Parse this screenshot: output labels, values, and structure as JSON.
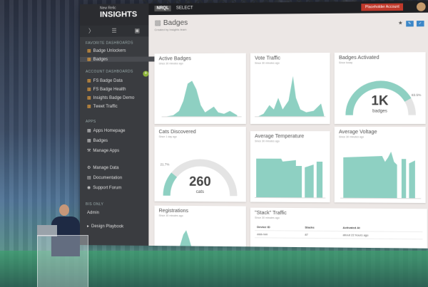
{
  "app": {
    "brand_small": "New Relic",
    "brand_big": "INSIGHTS"
  },
  "topbar": {
    "logo": "NRQL",
    "select_label": "SELECT",
    "account_label": "Placeholder Account"
  },
  "sidebar": {
    "favorites_label": "FAVORITE DASHBOARDS",
    "favorites": [
      "Badge Unlockers",
      "Badges"
    ],
    "account_label": "ACCOUNT DASHBOARDS",
    "account": [
      "FS Badge Data",
      "FS Badge Health",
      "Insights Badge Demo",
      "Tweet Traffic"
    ],
    "apps_label": "APPS",
    "apps": [
      "Apps Homepage",
      "Badges",
      "Manage Apps"
    ],
    "links": [
      "Manage Data",
      "Documentation",
      "Support Forum"
    ],
    "bis_label": "BIS ONLY",
    "bis": [
      "Admin",
      "Design Playbook"
    ]
  },
  "page": {
    "title": "Badges",
    "subtitle": "Created by Insights team"
  },
  "cards": {
    "active_badges": {
      "title": "Active Badges",
      "subtitle": "Since 30 minutes ago"
    },
    "vote_traffic": {
      "title": "Vote Traffic",
      "subtitle": "Since 30 minutes ago"
    },
    "badges_activated": {
      "title": "Badges Activated",
      "subtitle": "Since today",
      "value": "1K",
      "unit": "badges",
      "percent": "83.5%",
      "fill": 0.835
    },
    "cats_discovered": {
      "title": "Cats Discovered",
      "subtitle": "Since 1 day ago",
      "value": "260",
      "unit": "cats",
      "percent": "21.7%",
      "fill": 0.217
    },
    "average_temperature": {
      "title": "Average Temperature",
      "subtitle": "Since 30 minutes ago"
    },
    "average_voltage": {
      "title": "Average Voltage",
      "subtitle": "Since 30 minutes ago"
    },
    "registrations": {
      "title": "Registrations",
      "subtitle": "Since 30 minutes ago"
    },
    "stack_traffic": {
      "title": "\"Stack\" Traffic",
      "subtitle": "Since 30 minutes ago",
      "columns": [
        "Device ID",
        "Stacks",
        "Activated At"
      ],
      "rows": [
        [
          "ddd-mm",
          "87",
          "about 22 hours ago"
        ]
      ]
    }
  },
  "colors": {
    "chart_teal": "#8ed0c2",
    "sidebar_bg": "#3a3c40",
    "accent_orange": "#e8a03c"
  }
}
